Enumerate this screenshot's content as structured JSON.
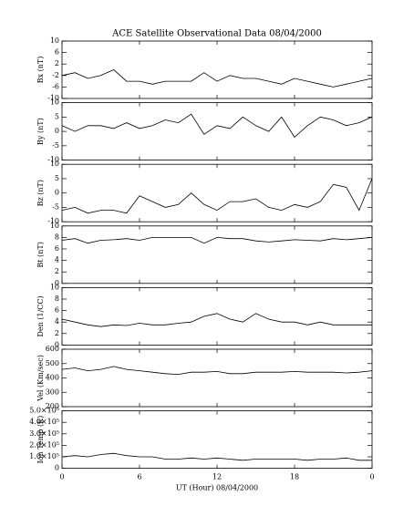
{
  "title": "ACE Satellite Observational Data   08/04/2000",
  "chart_data": [
    {
      "type": "line",
      "ylabel": "Bx (nT)",
      "color": "#000000",
      "x": [
        0,
        1,
        2,
        3,
        4,
        5,
        6,
        7,
        8,
        9,
        10,
        11,
        12,
        13,
        14,
        15,
        16,
        17,
        18,
        19,
        20,
        21,
        22,
        23,
        24
      ],
      "values": [
        -2,
        -1,
        -3,
        -2,
        0,
        -4,
        -4,
        -5,
        -4,
        -4,
        -4,
        -1,
        -4,
        -2,
        -3,
        -3,
        -4,
        -5,
        -3,
        -4,
        -5,
        -6,
        -5,
        -4,
        -3
      ],
      "xlim": [
        0,
        24
      ],
      "ylim": [
        -10,
        10
      ],
      "yticks": [
        -10,
        -6,
        -2,
        2,
        6,
        10
      ]
    },
    {
      "type": "line",
      "ylabel": "By (nT)",
      "color": "#000000",
      "x": [
        0,
        1,
        2,
        3,
        4,
        5,
        6,
        7,
        8,
        9,
        10,
        11,
        12,
        13,
        14,
        15,
        16,
        17,
        18,
        19,
        20,
        21,
        22,
        23,
        24
      ],
      "values": [
        2,
        0,
        2,
        2,
        1,
        3,
        1,
        2,
        4,
        3,
        6,
        -1,
        2,
        1,
        5,
        2,
        0,
        5,
        -2,
        2,
        5,
        4,
        2,
        3,
        5
      ],
      "xlim": [
        0,
        24
      ],
      "ylim": [
        -10,
        10
      ],
      "yticks": [
        -10,
        -5,
        0,
        5,
        10
      ]
    },
    {
      "type": "line",
      "ylabel": "Bz (nT)",
      "color": "#000000",
      "x": [
        0,
        1,
        2,
        3,
        4,
        5,
        6,
        7,
        8,
        9,
        10,
        11,
        12,
        13,
        14,
        15,
        16,
        17,
        18,
        19,
        20,
        21,
        22,
        23,
        24
      ],
      "values": [
        -6,
        -5,
        -7,
        -6,
        -6,
        -7,
        -1,
        -3,
        -5,
        -4,
        0,
        -4,
        -6,
        -3,
        -3,
        -2,
        -5,
        -6,
        -4,
        -5,
        -3,
        3,
        2,
        -6,
        5
      ],
      "xlim": [
        0,
        24
      ],
      "ylim": [
        -10,
        10
      ],
      "yticks": [
        -10,
        -5,
        0,
        5,
        10
      ]
    },
    {
      "type": "line",
      "ylabel": "Bt (nT)",
      "color": "#000000",
      "x": [
        0,
        1,
        2,
        3,
        4,
        5,
        6,
        7,
        8,
        9,
        10,
        11,
        12,
        13,
        14,
        15,
        16,
        17,
        18,
        19,
        20,
        21,
        22,
        23,
        24
      ],
      "values": [
        7.5,
        7.8,
        7,
        7.5,
        7.6,
        7.8,
        7.5,
        8,
        8,
        8,
        8,
        7,
        8,
        7.8,
        7.8,
        7.4,
        7.2,
        7.4,
        7.6,
        7.5,
        7.4,
        7.8,
        7.6,
        7.8,
        8
      ],
      "xlim": [
        0,
        24
      ],
      "ylim": [
        0,
        10
      ],
      "yticks": [
        0,
        2,
        4,
        6,
        8,
        10
      ]
    },
    {
      "type": "line",
      "ylabel": "Den (1/CC)",
      "color": "#000000",
      "x": [
        0,
        1,
        2,
        3,
        4,
        5,
        6,
        7,
        8,
        9,
        10,
        11,
        12,
        13,
        14,
        15,
        16,
        17,
        18,
        19,
        20,
        21,
        22,
        23,
        24
      ],
      "values": [
        4.5,
        4,
        3.5,
        3.2,
        3.5,
        3.4,
        3.8,
        3.5,
        3.5,
        3.8,
        4,
        5,
        5.5,
        4.5,
        4,
        5.5,
        4.5,
        4,
        4,
        3.5,
        4,
        3.5,
        3.5,
        3.5,
        3.5
      ],
      "xlim": [
        0,
        24
      ],
      "ylim": [
        0,
        10
      ],
      "yticks": [
        0,
        2,
        4,
        6,
        8,
        10
      ]
    },
    {
      "type": "line",
      "ylabel": "Vel (Km/sec)",
      "color": "#000000",
      "x": [
        0,
        1,
        2,
        3,
        4,
        5,
        6,
        7,
        8,
        9,
        10,
        11,
        12,
        13,
        14,
        15,
        16,
        17,
        18,
        19,
        20,
        21,
        22,
        23,
        24
      ],
      "values": [
        460,
        470,
        450,
        460,
        480,
        460,
        450,
        440,
        430,
        425,
        440,
        440,
        445,
        430,
        430,
        440,
        440,
        440,
        445,
        440,
        440,
        440,
        435,
        440,
        450
      ],
      "xlim": [
        0,
        24
      ],
      "ylim": [
        200,
        600
      ],
      "yticks": [
        200,
        300,
        400,
        500,
        600
      ]
    },
    {
      "type": "line",
      "ylabel": "Ion Temp (K)",
      "color": "#000000",
      "x": [
        0,
        1,
        2,
        3,
        4,
        5,
        6,
        7,
        8,
        9,
        10,
        11,
        12,
        13,
        14,
        15,
        16,
        17,
        18,
        19,
        20,
        21,
        22,
        23,
        24
      ],
      "values": [
        100000,
        110000,
        100000,
        120000,
        130000,
        110000,
        100000,
        100000,
        80000,
        80000,
        90000,
        80000,
        90000,
        80000,
        70000,
        80000,
        80000,
        80000,
        80000,
        70000,
        80000,
        80000,
        90000,
        70000,
        70000
      ],
      "xlim": [
        0,
        24
      ],
      "ylim": [
        0,
        500000
      ],
      "yticks": [
        0,
        {
          "value": 100000,
          "label": "1.0×10⁵"
        },
        {
          "value": 200000,
          "label": "2.0×10⁵"
        },
        {
          "value": 300000,
          "label": "3.0×10⁵"
        },
        {
          "value": 400000,
          "label": "4.0×10⁵"
        },
        {
          "value": 500000,
          "label": "5.0×10⁵"
        }
      ],
      "xticks": [
        0,
        6,
        12,
        18,
        {
          "value": 24,
          "label": "0"
        }
      ],
      "xlabel": "UT (Hour)  08/04/2000"
    }
  ]
}
